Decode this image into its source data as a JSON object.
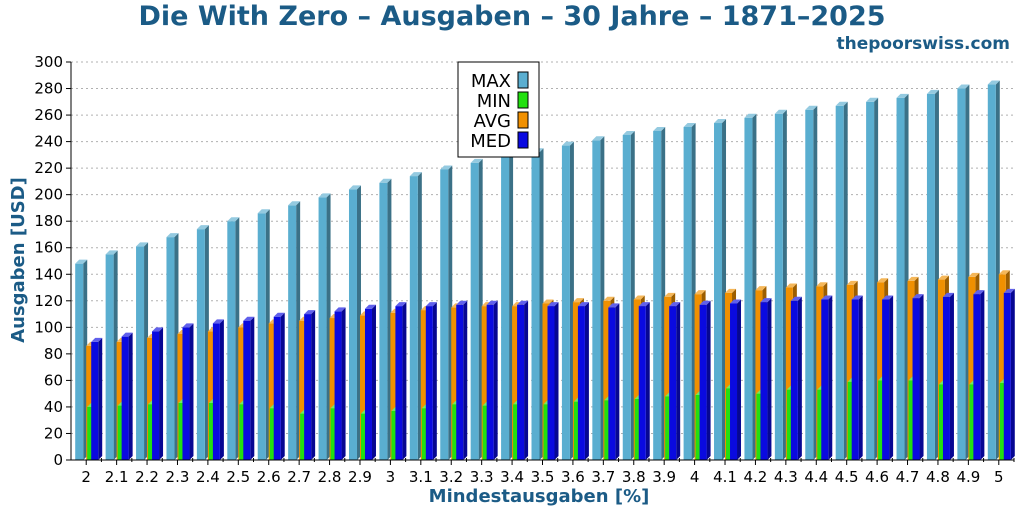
{
  "header": {
    "title": "Die With Zero – Ausgaben – 30 Jahre – 1871–2025",
    "site": "thepoorswiss.com"
  },
  "colors": {
    "MAX": "#5aaed0",
    "MIN": "#22e010",
    "AVG": "#f09000",
    "MED": "#0a0ae0",
    "title": "#1b5b86"
  },
  "chart_data": {
    "type": "bar",
    "xlabel": "Mindestausgaben [%]",
    "ylabel": "Ausgaben [USD]",
    "ylim": [
      0,
      300
    ],
    "yticks": [
      0,
      20,
      40,
      60,
      80,
      100,
      120,
      140,
      160,
      180,
      200,
      220,
      240,
      260,
      280,
      300
    ],
    "grid": true,
    "legend_position": "top-center",
    "categories": [
      "2",
      "2.1",
      "2.2",
      "2.3",
      "2.4",
      "2.5",
      "2.6",
      "2.7",
      "2.8",
      "2.9",
      "3",
      "3.1",
      "3.2",
      "3.3",
      "3.4",
      "3.5",
      "3.6",
      "3.7",
      "3.8",
      "3.9",
      "4",
      "4.1",
      "4.2",
      "4.3",
      "4.4",
      "4.5",
      "4.6",
      "4.7",
      "4.8",
      "4.9",
      "5"
    ],
    "series": [
      {
        "name": "MAX",
        "values": [
          148,
          155,
          161,
          168,
          174,
          180,
          186,
          192,
          198,
          204,
          209,
          214,
          219,
          224,
          229,
          232,
          237,
          241,
          245,
          248,
          251,
          254,
          258,
          261,
          264,
          267,
          270,
          273,
          276,
          280,
          283
        ]
      },
      {
        "name": "MIN",
        "values": [
          40,
          41,
          42,
          43,
          43,
          42,
          39,
          35,
          39,
          35,
          37,
          39,
          42,
          41,
          42,
          42,
          44,
          45,
          46,
          48,
          49,
          54,
          50,
          53,
          53,
          59,
          60,
          60,
          57,
          57,
          58
        ]
      },
      {
        "name": "AVG",
        "values": [
          86,
          89,
          92,
          95,
          97,
          100,
          103,
          105,
          107,
          109,
          111,
          113,
          115,
          116,
          116,
          118,
          119,
          120,
          121,
          123,
          125,
          126,
          128,
          130,
          131,
          132,
          134,
          135,
          136,
          138,
          140
        ]
      },
      {
        "name": "MED",
        "values": [
          89,
          93,
          97,
          100,
          103,
          105,
          108,
          110,
          112,
          114,
          116,
          116,
          117,
          117,
          117,
          116,
          116,
          115,
          116,
          116,
          117,
          118,
          119,
          120,
          121,
          121,
          121,
          122,
          123,
          125,
          126
        ]
      }
    ]
  }
}
